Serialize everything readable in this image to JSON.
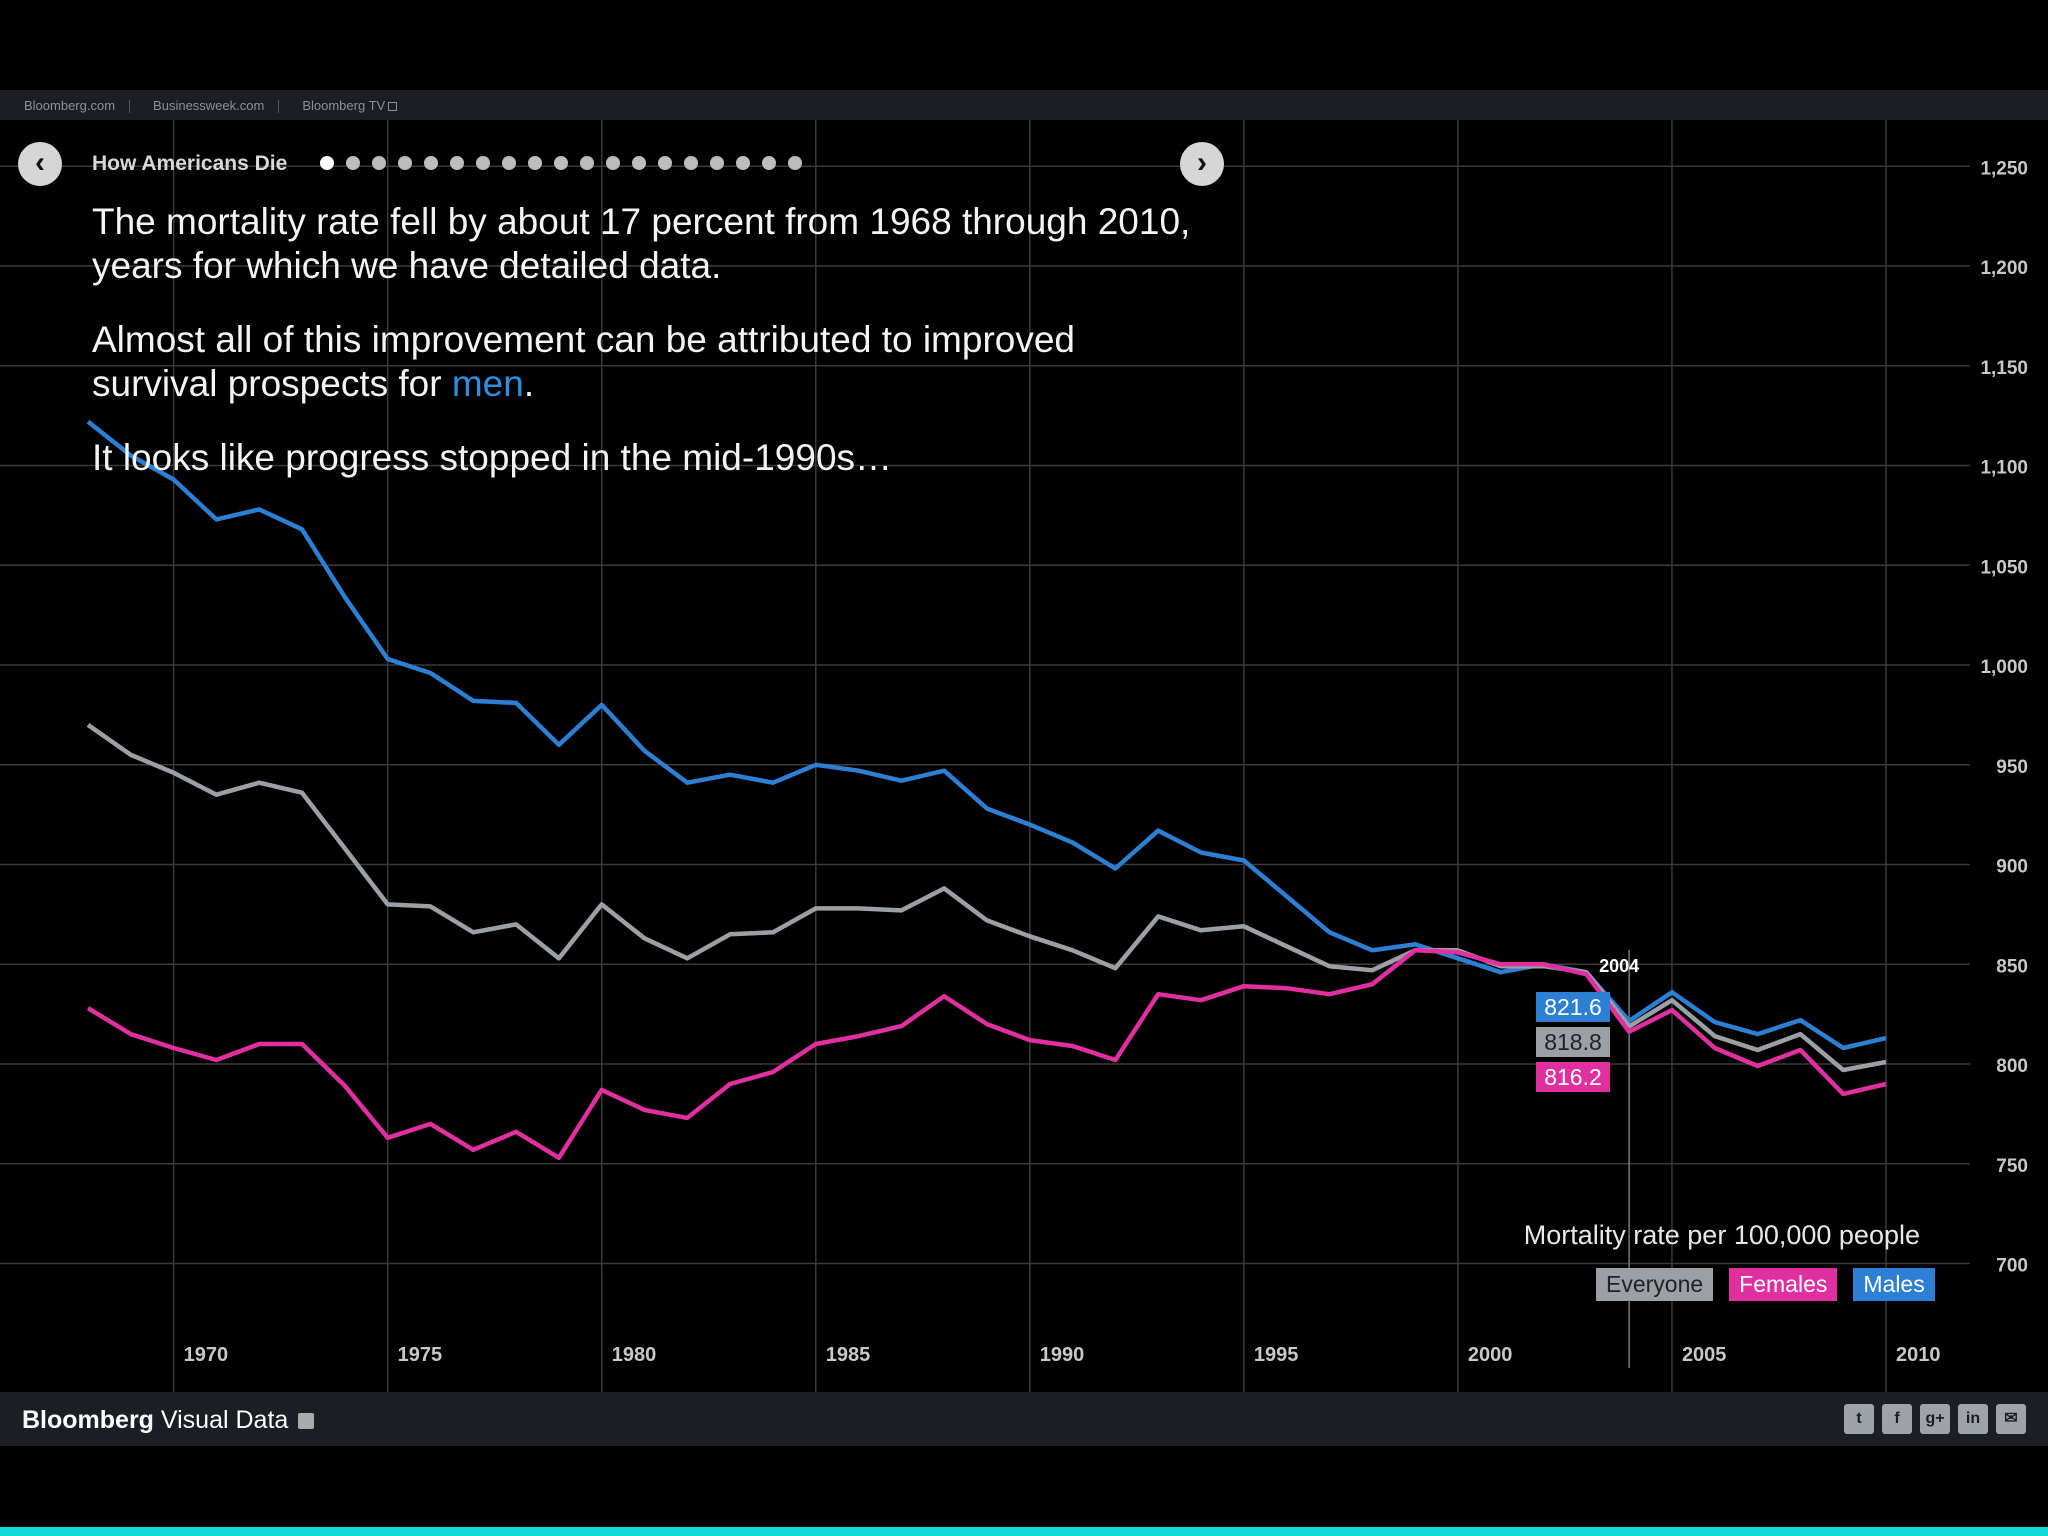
{
  "topbar": {
    "links": [
      "Bloomberg.com",
      "Businessweek.com",
      "Bloomberg TV"
    ]
  },
  "nav": {
    "prev_icon": "chevron-left-icon",
    "next_icon": "chevron-right-icon",
    "prev_glyph": "‹",
    "next_glyph": "›",
    "story_title": "How Americans Die",
    "slide_count": 19,
    "active_slide": 1
  },
  "narrative": {
    "p1": "The mortality rate fell by about 17 percent from 1968 through 2010, years for which we have detailed data.",
    "p2_before": "Almost all of this improvement can be attributed to improved survival prospects for ",
    "p2_highlight": "men",
    "p2_after": ".",
    "p3": "It looks like progress stopped in the mid-1990s…"
  },
  "chart_data": {
    "type": "line",
    "x": [
      1968,
      1969,
      1970,
      1971,
      1972,
      1973,
      1974,
      1975,
      1976,
      1977,
      1978,
      1979,
      1980,
      1981,
      1982,
      1983,
      1984,
      1985,
      1986,
      1987,
      1988,
      1989,
      1990,
      1991,
      1992,
      1993,
      1994,
      1995,
      1996,
      1997,
      1998,
      1999,
      2000,
      2001,
      2002,
      2003,
      2004,
      2005,
      2006,
      2007,
      2008,
      2009,
      2010
    ],
    "series": [
      {
        "name": "Males",
        "color": "#2d7fd3",
        "values": [
          1122,
          1105,
          1093,
          1073,
          1078,
          1068,
          1034,
          1003,
          996,
          982,
          981,
          960,
          980,
          957,
          941,
          945,
          941,
          950,
          947,
          942,
          947,
          928,
          920,
          911,
          898,
          917,
          906,
          902,
          884,
          866,
          857,
          860,
          853,
          846,
          850,
          846,
          821.6,
          836,
          821,
          815,
          822,
          808,
          813
        ]
      },
      {
        "name": "Everyone",
        "color": "#9aa0a6",
        "values": [
          970,
          955,
          946,
          935,
          941,
          936,
          908,
          880,
          879,
          866,
          870,
          853,
          880,
          863,
          853,
          865,
          866,
          878,
          878,
          877,
          888,
          872,
          864,
          857,
          848,
          874,
          867,
          869,
          859,
          849,
          847,
          857,
          857,
          849,
          849,
          846,
          818.8,
          832,
          814,
          807,
          815,
          797,
          801
        ]
      },
      {
        "name": "Females",
        "color": "#e030a0",
        "values": [
          828,
          815,
          808,
          802,
          810,
          810,
          789,
          763,
          770,
          757,
          766,
          753,
          787,
          777,
          773,
          790,
          796,
          810,
          814,
          819,
          834,
          820,
          812,
          809,
          802,
          835,
          832,
          839,
          838,
          835,
          840,
          857,
          856,
          850,
          850,
          845,
          816.2,
          827,
          808,
          799,
          807,
          785,
          790
        ]
      }
    ],
    "highlight": {
      "year": "2004",
      "values": [
        "821.6",
        "818.8",
        "816.2"
      ]
    },
    "xticks": [
      "1970",
      "1975",
      "1980",
      "1985",
      "1990",
      "1995",
      "2000",
      "2005",
      "2010"
    ],
    "yticks": [
      "1,250",
      "1,200",
      "1,150",
      "1,100",
      "1,050",
      "1,000",
      "950",
      "900",
      "850",
      "800",
      "750",
      "700"
    ],
    "xlim": [
      1968,
      2010
    ],
    "ylim": [
      650,
      1290
    ],
    "grid": true,
    "ylabel": "Mortality rate per 100,000 people",
    "legend": [
      "Everyone",
      "Females",
      "Males"
    ],
    "legend_placement": "bottom-right"
  },
  "footer": {
    "brand_bold": "Bloomberg",
    "brand_rest": " Visual Data",
    "share_buttons": [
      {
        "name": "twitter-icon",
        "glyph": "t"
      },
      {
        "name": "facebook-icon",
        "glyph": "f"
      },
      {
        "name": "google-plus-icon",
        "glyph": "g+"
      },
      {
        "name": "linkedin-icon",
        "glyph": "in"
      },
      {
        "name": "email-icon",
        "glyph": "✉"
      }
    ]
  }
}
